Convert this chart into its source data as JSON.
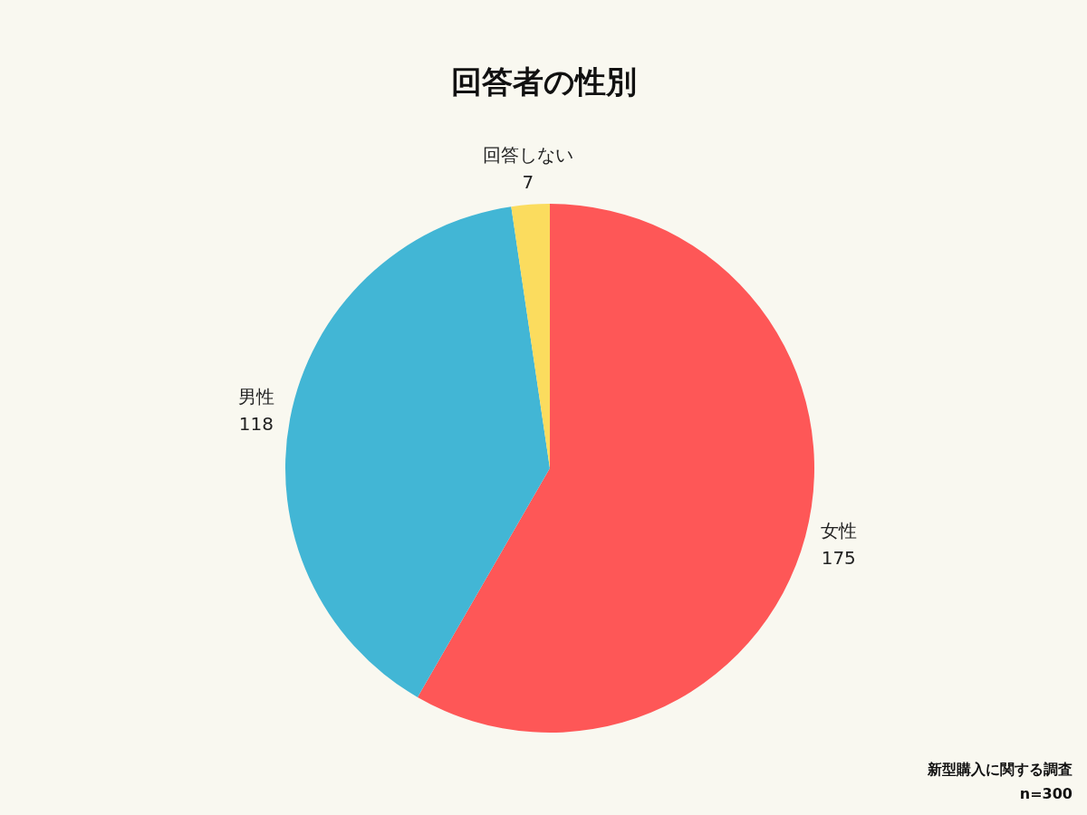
{
  "chart_data": {
    "type": "pie",
    "title": "回答者の性別",
    "categories": [
      "女性",
      "男性",
      "回答しない"
    ],
    "values": [
      175,
      118,
      7
    ],
    "colors": [
      "#fe5757",
      "#42b6d5",
      "#fbdc5e"
    ],
    "data_labels": true,
    "annotations": [
      "新型購入に関する調査",
      "n=300"
    ]
  }
}
